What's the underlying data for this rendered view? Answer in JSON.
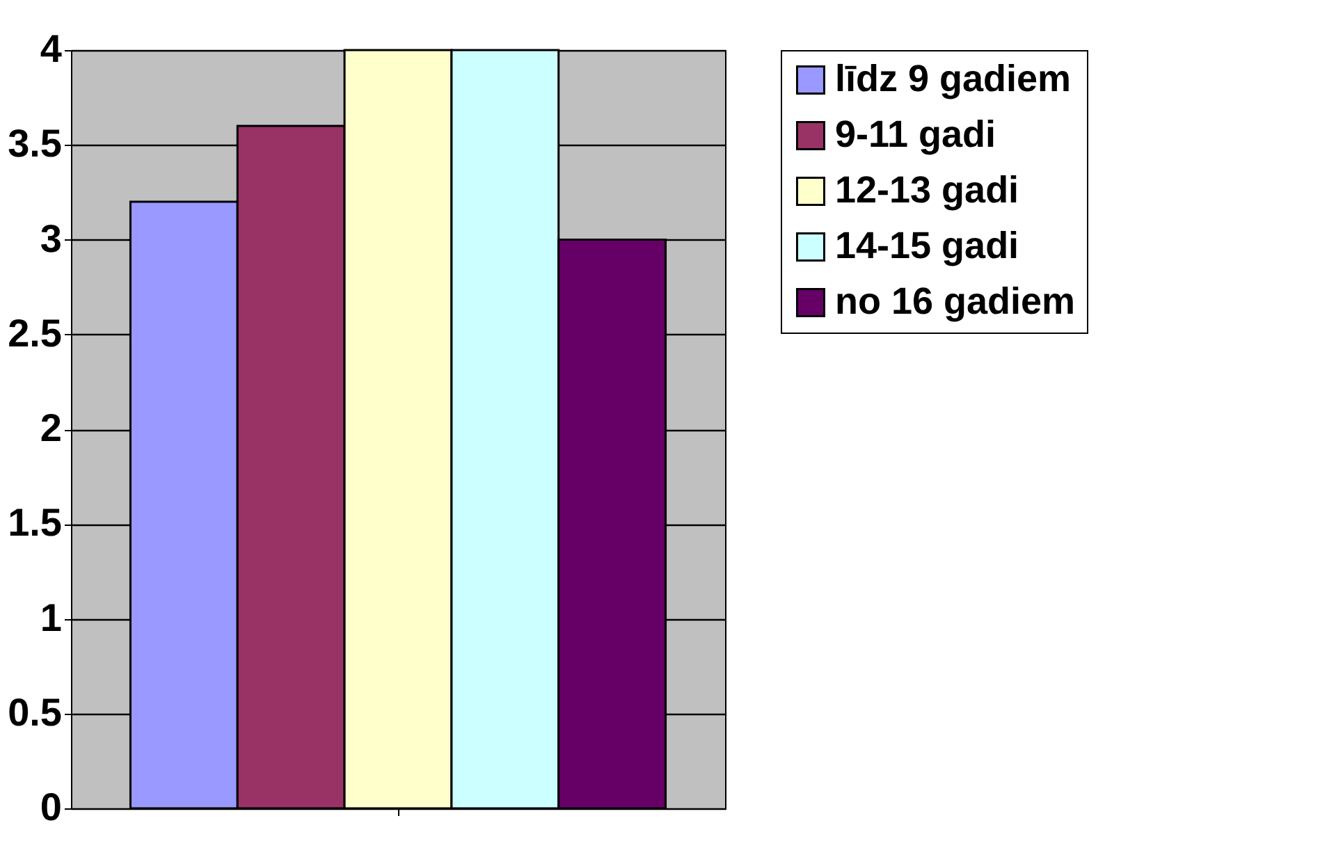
{
  "chart_data": {
    "type": "bar",
    "categories": [
      null
    ],
    "series": [
      {
        "name": "līdz 9 gadiem",
        "color": "#9999ff",
        "values": [
          3.2
        ]
      },
      {
        "name": "9-11 gadi",
        "color": "#993366",
        "values": [
          3.6
        ]
      },
      {
        "name": "12-13 gadi",
        "color": "#ffffcc",
        "values": [
          4
        ]
      },
      {
        "name": "14-15 gadi",
        "color": "#ccffff",
        "values": [
          4
        ]
      },
      {
        "name": "no 16 gadiem",
        "color": "#660066",
        "values": [
          3
        ]
      }
    ],
    "ylim": [
      0,
      4
    ],
    "yticks": [
      0,
      0.5,
      1,
      1.5,
      2,
      2.5,
      3,
      3.5,
      4
    ],
    "grid": "y",
    "legend": "right"
  }
}
